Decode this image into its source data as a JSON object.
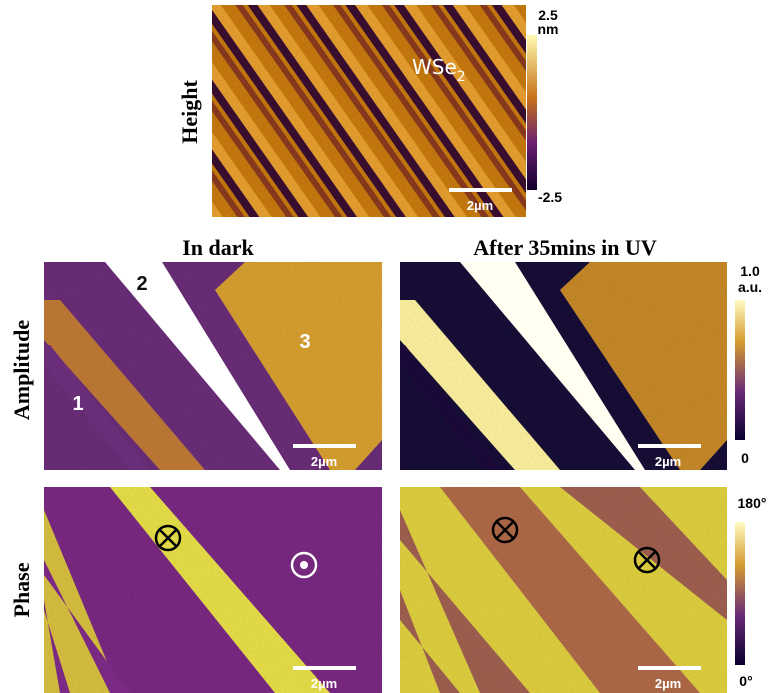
{
  "height_panel": {
    "label": "Height",
    "material": {
      "text": "WSe",
      "subscript": "2"
    },
    "scale_bar": "2µm",
    "colorbar": {
      "max": "2.5",
      "unit": "nm",
      "min": "-2.5"
    }
  },
  "columns": {
    "left": "In dark",
    "right": "After 35mins in UV"
  },
  "amplitude_row": {
    "label": "Amplitude",
    "region_labels": [
      "1",
      "2",
      "3"
    ],
    "scale_bars": [
      "2µm",
      "2µm"
    ],
    "colorbar": {
      "max": "1.0",
      "unit": "a.u.",
      "min": "0"
    }
  },
  "phase_row": {
    "label": "Phase",
    "scale_bars": [
      "2µm",
      "2µm"
    ],
    "colorbar": {
      "max": "180°",
      "min": "0°"
    }
  }
}
